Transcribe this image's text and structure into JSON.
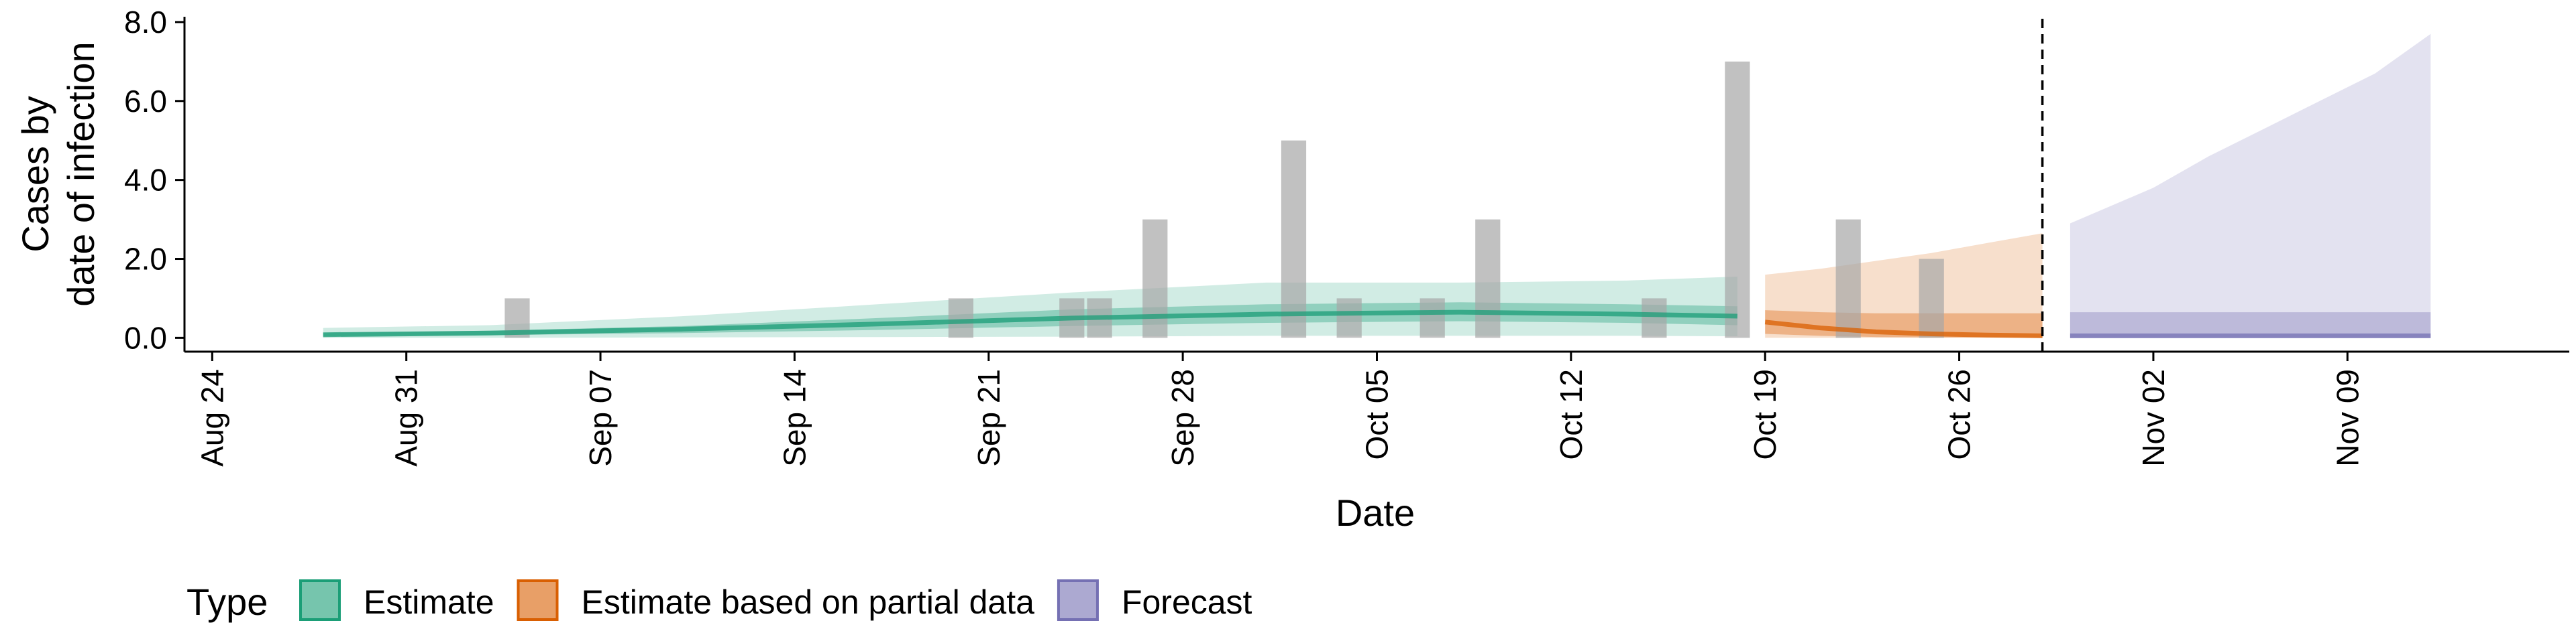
{
  "chart_data": {
    "type": "area",
    "xlabel": "Date",
    "ylabel_lines": [
      "Cases by",
      "date of infection"
    ],
    "y_ticks": [
      0.0,
      2.0,
      4.0,
      6.0,
      8.0
    ],
    "y_tick_labels": [
      "0.0",
      "2.0",
      "4.0",
      "6.0",
      "8.0"
    ],
    "ylim": [
      -0.35,
      8.05
    ],
    "xlim": [
      "2020-08-23",
      "2020-11-17"
    ],
    "x_tick_dates": [
      "2020-08-24",
      "2020-08-31",
      "2020-09-07",
      "2020-09-14",
      "2020-09-21",
      "2020-09-28",
      "2020-10-05",
      "2020-10-12",
      "2020-10-19",
      "2020-10-26",
      "2020-11-02",
      "2020-11-09"
    ],
    "x_tick_labels": [
      "Aug 24",
      "Aug 31",
      "Sep 07",
      "Sep 14",
      "Sep 21",
      "Sep 28",
      "Oct 05",
      "Oct 12",
      "Oct 19",
      "Oct 26",
      "Nov 02",
      "Nov 09"
    ],
    "forecast_divider_date": "2020-10-29",
    "grid": false,
    "legend": {
      "title": "Type",
      "position": "bottom",
      "entries": [
        {
          "label": "Estimate",
          "color": "#1b9e77"
        },
        {
          "label": "Estimate based on partial data",
          "color": "#d95f02"
        },
        {
          "label": "Forecast",
          "color": "#7570b3"
        }
      ]
    },
    "observed_cases": [
      {
        "date": "2020-09-04",
        "value": 1
      },
      {
        "date": "2020-09-20",
        "value": 1
      },
      {
        "date": "2020-09-24",
        "value": 1
      },
      {
        "date": "2020-09-25",
        "value": 1
      },
      {
        "date": "2020-09-27",
        "value": 3
      },
      {
        "date": "2020-10-02",
        "value": 5
      },
      {
        "date": "2020-10-04",
        "value": 1
      },
      {
        "date": "2020-10-07",
        "value": 1
      },
      {
        "date": "2020-10-09",
        "value": 3
      },
      {
        "date": "2020-10-15",
        "value": 1
      },
      {
        "date": "2020-10-18",
        "value": 7
      },
      {
        "date": "2020-10-22",
        "value": 3
      },
      {
        "date": "2020-10-25",
        "value": 2
      }
    ],
    "series": [
      {
        "name": "Estimate",
        "color": "#1b9e77",
        "dates": [
          "2020-08-28",
          "2020-09-03",
          "2020-09-10",
          "2020-09-17",
          "2020-09-24",
          "2020-10-01",
          "2020-10-08",
          "2020-10-14",
          "2020-10-18"
        ],
        "median": [
          0.08,
          0.12,
          0.22,
          0.35,
          0.5,
          0.6,
          0.65,
          0.6,
          0.55
        ],
        "lower90": [
          0.0,
          0.0,
          0.01,
          0.02,
          0.03,
          0.05,
          0.05,
          0.05,
          0.04
        ],
        "upper90": [
          0.25,
          0.32,
          0.55,
          0.85,
          1.15,
          1.4,
          1.4,
          1.45,
          1.55
        ],
        "lower50": [
          0.04,
          0.07,
          0.12,
          0.2,
          0.3,
          0.38,
          0.42,
          0.38,
          0.32
        ],
        "upper50": [
          0.12,
          0.18,
          0.3,
          0.5,
          0.72,
          0.85,
          0.9,
          0.85,
          0.8
        ]
      },
      {
        "name": "Estimate based on partial data",
        "color": "#d95f02",
        "dates": [
          "2020-10-19",
          "2020-10-21",
          "2020-10-23",
          "2020-10-25",
          "2020-10-27",
          "2020-10-29"
        ],
        "median": [
          0.4,
          0.25,
          0.15,
          0.1,
          0.07,
          0.05
        ],
        "lower90": [
          0.0,
          0.0,
          0.0,
          0.0,
          0.0,
          0.0
        ],
        "upper90": [
          1.6,
          1.75,
          1.95,
          2.15,
          2.4,
          2.65
        ],
        "lower50": [
          0.1,
          0.05,
          0.02,
          0.01,
          0.01,
          0.01
        ],
        "upper50": [
          0.7,
          0.65,
          0.62,
          0.62,
          0.62,
          0.62
        ]
      },
      {
        "name": "Forecast",
        "color": "#7570b3",
        "dates": [
          "2020-10-30",
          "2020-11-02",
          "2020-11-04",
          "2020-11-06",
          "2020-11-08",
          "2020-11-10",
          "2020-11-12"
        ],
        "median": [
          0.05,
          0.05,
          0.05,
          0.05,
          0.05,
          0.05,
          0.05
        ],
        "lower90": [
          0.0,
          0.0,
          0.0,
          0.0,
          0.0,
          0.0,
          0.0
        ],
        "upper90": [
          2.9,
          3.8,
          4.6,
          5.3,
          6.0,
          6.7,
          7.7
        ],
        "lower50": [
          0.0,
          0.0,
          0.0,
          0.0,
          0.0,
          0.0,
          0.0
        ],
        "upper50": [
          0.65,
          0.65,
          0.65,
          0.65,
          0.65,
          0.65,
          0.65
        ]
      }
    ]
  }
}
